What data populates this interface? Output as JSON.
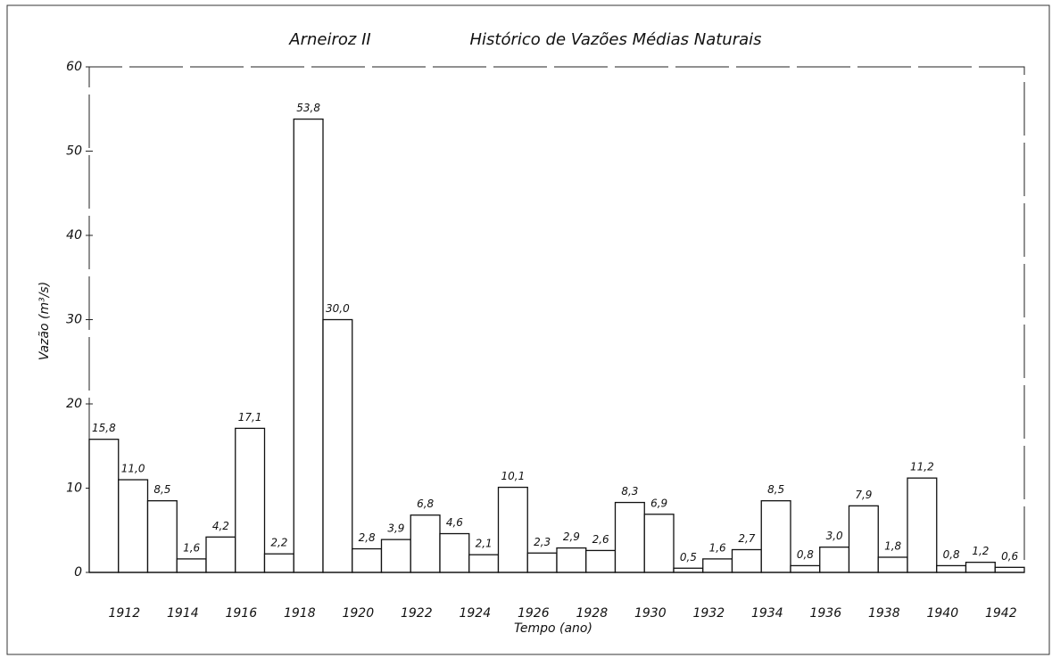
{
  "chart_data": {
    "type": "bar",
    "title": "Arneiroz II",
    "subtitle": "Histórico de Vazões Médias Naturais",
    "y_label": "Vazão (m³/s)",
    "x_label": "Tempo (ano)",
    "categories": [
      null,
      "1912",
      null,
      "1914",
      null,
      "1916",
      null,
      "1918",
      null,
      "1920",
      null,
      "1922",
      null,
      "1924",
      null,
      "1926",
      null,
      "1928",
      null,
      "1930",
      null,
      "1932",
      null,
      "1934",
      null,
      "1936",
      null,
      "1938",
      null,
      "1940",
      null,
      "1942"
    ],
    "values": [
      15.8,
      11.0,
      8.5,
      1.6,
      4.2,
      17.1,
      2.2,
      53.8,
      30.0,
      2.8,
      3.9,
      6.8,
      4.6,
      2.1,
      10.1,
      2.3,
      2.9,
      2.6,
      8.3,
      6.9,
      0.5,
      1.6,
      2.7,
      8.5,
      0.8,
      3.0,
      7.9,
      1.8,
      11.2,
      0.8,
      1.2,
      0.6
    ],
    "value_labels": [
      "15,8",
      "11,0",
      "8,5",
      "1,6",
      "4,2",
      "17,1",
      "2,2",
      "53,8",
      "30,0",
      "2,8",
      "3,9",
      "6,8",
      "4,6",
      "2,1",
      "10,1",
      "2,3",
      "2,9",
      "2,6",
      "8,3",
      "6,9",
      "0,5",
      "1,6",
      "2,7",
      "8,5",
      "0,8",
      "3,0",
      "7,9",
      "1,8",
      "11,2",
      "0,8",
      "1,2",
      "0,6"
    ],
    "color": "#ffffff",
    "ylim": [
      0,
      60
    ],
    "yticks": [
      0,
      10,
      20,
      30,
      40,
      50,
      60
    ],
    "grid": false
  }
}
